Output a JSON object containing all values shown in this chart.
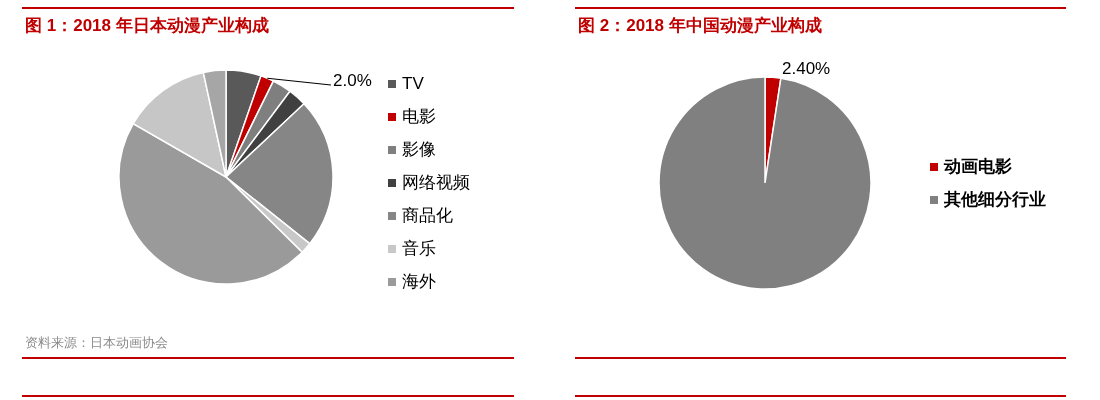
{
  "chart_data": [
    {
      "type": "pie",
      "title": "图 1：2018 年日本动漫产业构成",
      "categories": [
        "TV",
        "电影",
        "影像",
        "网络视频",
        "商品化",
        "音乐",
        "海外",
        null,
        null
      ],
      "values": [
        5.3,
        2.0,
        2.9,
        2.8,
        22.7,
        1.7,
        45.9,
        13.3,
        3.4
      ],
      "colors": [
        "#595959",
        "#c00000",
        "#7f7f7f",
        "#404040",
        "#868686",
        "#c8c8c8",
        "#9a9a9a",
        "#c6c6c6",
        "#a6a6a6"
      ],
      "value_labels": [
        null,
        "2.0%",
        null,
        null,
        null,
        null,
        null,
        null,
        null
      ],
      "legend": "right",
      "annotations": [
        "资料来源：日本动画协会"
      ]
    },
    {
      "type": "pie",
      "title": "图 2：2018 年中国动漫产业构成",
      "categories": [
        "动画电影",
        "其他细分行业"
      ],
      "values": [
        2.4,
        97.6
      ],
      "colors": [
        "#c00000",
        "#808080"
      ],
      "value_labels": [
        "2.40%",
        null
      ],
      "legend": "right"
    }
  ]
}
